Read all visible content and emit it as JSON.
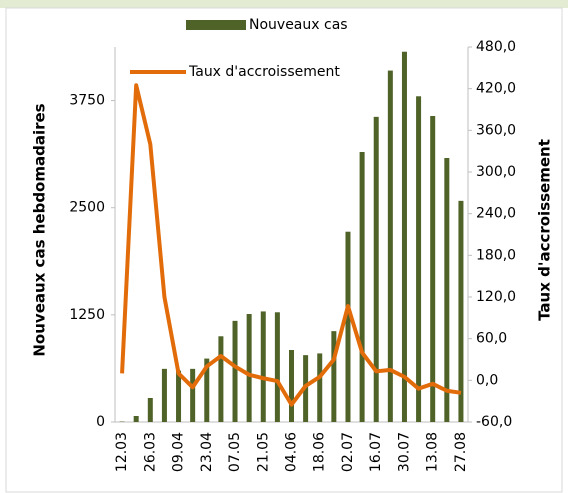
{
  "chart_data": {
    "type": "bar_line",
    "categories": [
      "12.03",
      null,
      "26.03",
      null,
      "09.04",
      null,
      "23.04",
      null,
      "07.05",
      null,
      "21.05",
      null,
      "04.06",
      null,
      "18.06",
      null,
      "02.07",
      null,
      "16.07",
      null,
      "30.07",
      null,
      "13.08",
      null,
      "27.08"
    ],
    "series": [
      {
        "name": "Nouveaux cas",
        "color": "#4f6228",
        "type": "bar",
        "values": [
          5,
          70,
          280,
          620,
          600,
          620,
          740,
          1000,
          1180,
          1260,
          1290,
          1280,
          840,
          780,
          800,
          1060,
          2220,
          3150,
          3560,
          4100,
          4320,
          3800,
          3570,
          3080,
          2580
        ]
      },
      {
        "name": "Taux d'accroissement",
        "color": "#e36c0a",
        "type": "line",
        "axis": "y2",
        "values": [
          10,
          425,
          340,
          120,
          10,
          -10,
          20,
          35,
          20,
          8,
          3,
          -1,
          -35,
          -8,
          5,
          30,
          107,
          40,
          13,
          15,
          5,
          -12,
          -5,
          -15,
          -18
        ]
      }
    ],
    "ylabel": "Nouveaux cas hebdomadaires",
    "y2label": "Taux d'accroissement",
    "ylim": [
      0,
      4375
    ],
    "yticks": [
      0,
      1250,
      2500,
      3750
    ],
    "y2lim": [
      -60,
      480
    ],
    "y2ticks": [
      {
        "value": -60,
        "label": "-60,0"
      },
      {
        "value": 0,
        "label": "0,0"
      },
      {
        "value": 60,
        "label": "60,0"
      },
      {
        "value": 120,
        "label": "120,0"
      },
      {
        "value": 180,
        "label": "180,0"
      },
      {
        "value": 240,
        "label": "240,0"
      },
      {
        "value": 300,
        "label": "300,0"
      },
      {
        "value": 360,
        "label": "360,0"
      },
      {
        "value": 420,
        "label": "420,0"
      },
      {
        "value": 480,
        "label": "480,0"
      }
    ]
  }
}
